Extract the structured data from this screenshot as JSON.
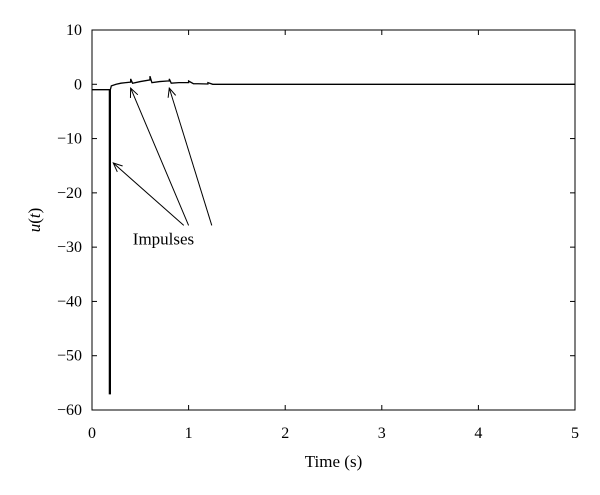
{
  "chart_data": {
    "type": "line",
    "title": "",
    "xlabel": "Time (s)",
    "ylabel_italic": "u",
    "ylabel_rest": "(t)",
    "ylabel_arg": "t",
    "xlim": [
      0,
      5
    ],
    "ylim": [
      -60,
      10
    ],
    "xticks": [
      0,
      1,
      2,
      3,
      4,
      5
    ],
    "yticks": [
      10,
      0,
      -10,
      -20,
      -30,
      -40,
      -50,
      -60
    ],
    "grid": false,
    "legend": "none",
    "series": [
      {
        "color": "#000000",
        "x": [
          0,
          0.18,
          0.18,
          0.19,
          0.19,
          0.2,
          0.25,
          0.3,
          0.35,
          0.4,
          0.4,
          0.42,
          0.5,
          0.6,
          0.6,
          0.62,
          0.7,
          0.78,
          0.8,
          0.8,
          0.82,
          0.9,
          1.0,
          1.0,
          1.05,
          1.1,
          1.2,
          1.2,
          1.25,
          1.3,
          1.4,
          1.5,
          1.6,
          5.0
        ],
        "y": [
          -1.0,
          -1.0,
          -57.0,
          -57.0,
          -1.0,
          -0.3,
          0.0,
          0.2,
          0.3,
          0.4,
          1.0,
          0.2,
          0.5,
          0.8,
          1.5,
          0.3,
          0.5,
          0.6,
          0.6,
          1.0,
          0.2,
          0.3,
          0.3,
          0.6,
          0.1,
          0.1,
          0.05,
          0.3,
          0.0,
          0.0,
          0.0,
          0.0,
          0.0,
          0.0
        ]
      }
    ],
    "annotations": [
      {
        "text": "Impulses",
        "text_at": [
          0.74,
          -29.5
        ],
        "arrows": [
          {
            "from": [
              0.95,
              -26.0
            ],
            "to": [
              0.22,
              -14.5
            ]
          },
          {
            "from": [
              1.0,
              -26.0
            ],
            "to": [
              0.4,
              -0.7
            ]
          },
          {
            "from": [
              1.24,
              -26.0
            ],
            "to": [
              0.8,
              -0.7
            ]
          }
        ]
      }
    ]
  }
}
